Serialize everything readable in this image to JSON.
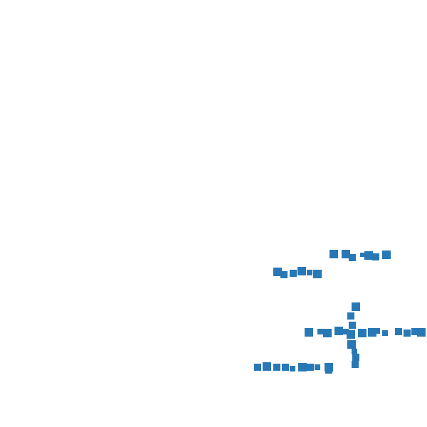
{
  "canvas": {
    "background": "#ffffff",
    "mark_color": "#2878b5",
    "mark_shape": "square"
  },
  "marks": {
    "group_count": 5,
    "groups": [
      "upper-right-row",
      "middle-left-row",
      "center-right-row",
      "vertical-column",
      "lower-left-row"
    ]
  }
}
